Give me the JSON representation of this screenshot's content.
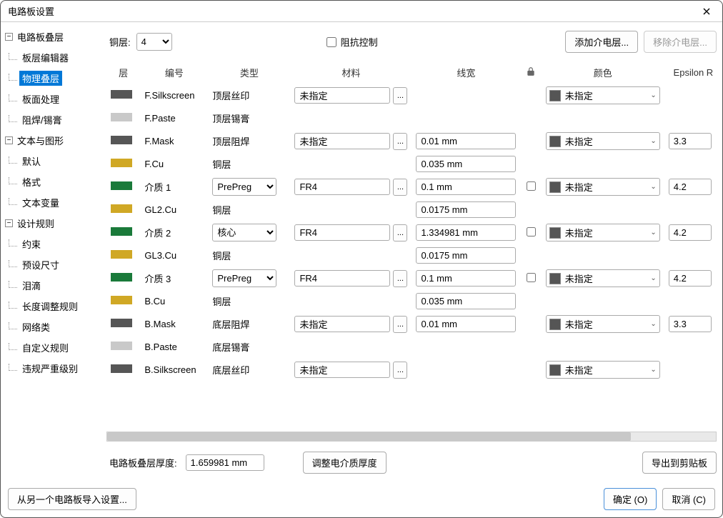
{
  "window": {
    "title": "电路板设置"
  },
  "sidebar": {
    "g0": {
      "label": "电路板叠层"
    },
    "g0_0": {
      "label": "板层编辑器"
    },
    "g0_1": {
      "label": "物理叠层"
    },
    "g0_2": {
      "label": "板面处理"
    },
    "g0_3": {
      "label": "阻焊/锡膏"
    },
    "g1": {
      "label": "文本与图形"
    },
    "g1_0": {
      "label": "默认"
    },
    "g1_1": {
      "label": "格式"
    },
    "g1_2": {
      "label": "文本变量"
    },
    "g2": {
      "label": "设计规则"
    },
    "g2_0": {
      "label": "约束"
    },
    "g2_1": {
      "label": "预设尺寸"
    },
    "g2_2": {
      "label": "泪滴"
    },
    "g2_3": {
      "label": "长度调整规则"
    },
    "g2_4": {
      "label": "网络类"
    },
    "g2_5": {
      "label": "自定义规则"
    },
    "g2_6": {
      "label": "违规严重级别"
    }
  },
  "toolbar": {
    "copper_label": "铜层:",
    "copper_value": "4",
    "impedance_label": "阻抗控制",
    "add_dielectric": "添加介电层...",
    "remove_dielectric": "移除介电层..."
  },
  "columns": {
    "layer": "层",
    "id": "编号",
    "type": "类型",
    "material": "材料",
    "width": "线宽",
    "lock": "",
    "color": "颜色",
    "epsilon": "Epsilon R"
  },
  "color_unspecified": "未指定",
  "material_unspecified": "未指定",
  "rows": [
    {
      "color_bar": "#565656",
      "id": "F.Silkscreen",
      "type": "顶层丝印",
      "type_sel": false,
      "material": "未指定",
      "has_mat": true,
      "width": "",
      "lock": false,
      "color": "未指定",
      "has_color": true,
      "eps": ""
    },
    {
      "color_bar": "#c9c9c9",
      "id": "F.Paste",
      "type": "顶层锡膏",
      "type_sel": false,
      "material": "",
      "has_mat": false,
      "width": "",
      "lock": false,
      "color": "",
      "has_color": false,
      "eps": ""
    },
    {
      "color_bar": "#565656",
      "id": "F.Mask",
      "type": "顶层阻焊",
      "type_sel": false,
      "material": "未指定",
      "has_mat": true,
      "width": "0.01 mm",
      "lock": false,
      "color": "未指定",
      "has_color": true,
      "eps": "3.3"
    },
    {
      "color_bar": "#d0a825",
      "id": "F.Cu",
      "type": "铜层",
      "type_sel": false,
      "material": "",
      "has_mat": false,
      "width": "0.035 mm",
      "lock": false,
      "color": "",
      "has_color": false,
      "eps": ""
    },
    {
      "color_bar": "#1a7a3a",
      "id": "介质 1",
      "type": "PrePreg",
      "type_sel": true,
      "material": "FR4",
      "has_mat": true,
      "width": "0.1 mm",
      "lock": true,
      "color": "未指定",
      "has_color": true,
      "eps": "4.2"
    },
    {
      "color_bar": "#d0a825",
      "id": "GL2.Cu",
      "type": "铜层",
      "type_sel": false,
      "material": "",
      "has_mat": false,
      "width": "0.0175 mm",
      "lock": false,
      "color": "",
      "has_color": false,
      "eps": ""
    },
    {
      "color_bar": "#1a7a3a",
      "id": "介质 2",
      "type": "核心",
      "type_sel": true,
      "material": "FR4",
      "has_mat": true,
      "width": "1.334981 mm",
      "lock": true,
      "color": "未指定",
      "has_color": true,
      "eps": "4.2"
    },
    {
      "color_bar": "#d0a825",
      "id": "GL3.Cu",
      "type": "铜层",
      "type_sel": false,
      "material": "",
      "has_mat": false,
      "width": "0.0175 mm",
      "lock": false,
      "color": "",
      "has_color": false,
      "eps": ""
    },
    {
      "color_bar": "#1a7a3a",
      "id": "介质 3",
      "type": "PrePreg",
      "type_sel": true,
      "material": "FR4",
      "has_mat": true,
      "width": "0.1 mm",
      "lock": true,
      "color": "未指定",
      "has_color": true,
      "eps": "4.2"
    },
    {
      "color_bar": "#d0a825",
      "id": "B.Cu",
      "type": "铜层",
      "type_sel": false,
      "material": "",
      "has_mat": false,
      "width": "0.035 mm",
      "lock": false,
      "color": "",
      "has_color": false,
      "eps": ""
    },
    {
      "color_bar": "#565656",
      "id": "B.Mask",
      "type": "底层阻焊",
      "type_sel": false,
      "material": "未指定",
      "has_mat": true,
      "width": "0.01 mm",
      "lock": false,
      "color": "未指定",
      "has_color": true,
      "eps": "3.3"
    },
    {
      "color_bar": "#c9c9c9",
      "id": "B.Paste",
      "type": "底层锡膏",
      "type_sel": false,
      "material": "",
      "has_mat": false,
      "width": "",
      "lock": false,
      "color": "",
      "has_color": false,
      "eps": ""
    },
    {
      "color_bar": "#565656",
      "id": "B.Silkscreen",
      "type": "底层丝印",
      "type_sel": false,
      "material": "未指定",
      "has_mat": true,
      "width": "",
      "lock": false,
      "color": "未指定",
      "has_color": true,
      "eps": ""
    }
  ],
  "bottom": {
    "thickness_label": "电路板叠层厚度:",
    "thickness_value": "1.659981 mm",
    "adjust_btn": "调整电介质厚度",
    "export_btn": "导出到剪贴板"
  },
  "footer": {
    "import_btn": "从另一个电路板导入设置...",
    "ok": "确定 (O)",
    "cancel": "取消 (C)"
  }
}
